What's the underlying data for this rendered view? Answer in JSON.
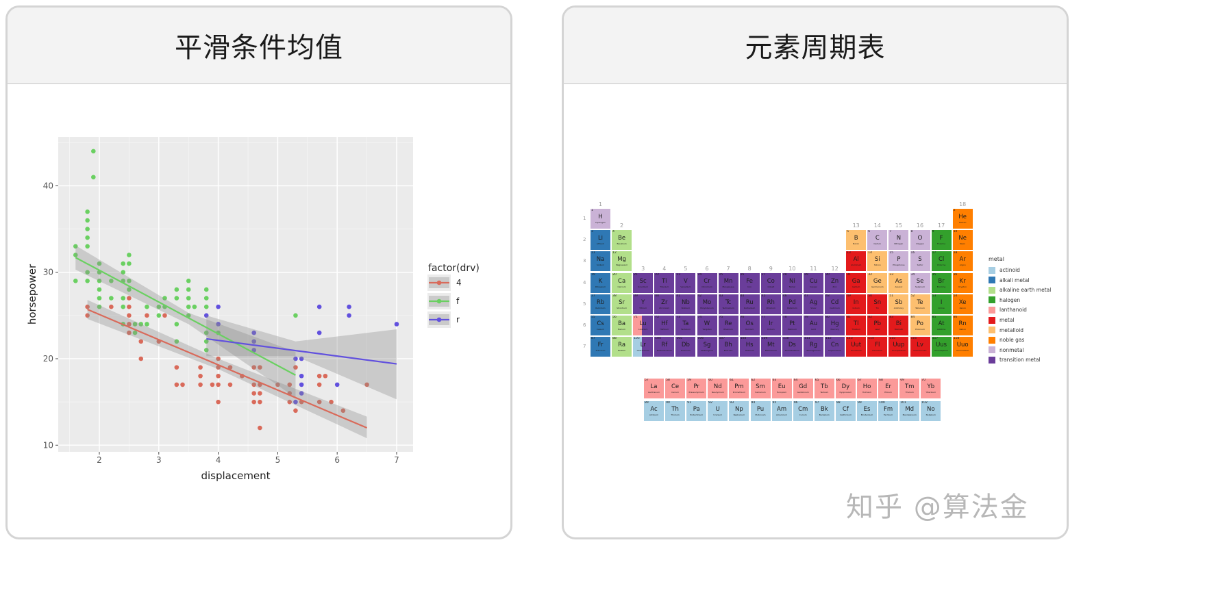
{
  "left_card": {
    "title": "平滑条件均值"
  },
  "right_card": {
    "title": "元素周期表"
  },
  "watermark": "知乎 @算法金",
  "chart_data": {
    "type": "scatter",
    "xlabel": "displacement",
    "ylabel": "horsepower",
    "xlim": [
      1.3,
      7.3
    ],
    "ylim": [
      9.5,
      45.5
    ],
    "xticks": [
      2,
      3,
      4,
      5,
      6,
      7
    ],
    "yticks": [
      10,
      20,
      30,
      40
    ],
    "grid": true,
    "background": "#ebebeb",
    "legend": {
      "title": "factor(drv)",
      "placement": "right"
    },
    "series": [
      {
        "name": "4",
        "color": "#d96a5a",
        "points": [
          [
            1.8,
            26
          ],
          [
            1.8,
            25
          ],
          [
            2.2,
            26
          ],
          [
            2.5,
            27
          ],
          [
            2.5,
            26
          ],
          [
            2.5,
            25
          ],
          [
            2.5,
            24
          ],
          [
            2.5,
            23
          ],
          [
            2.7,
            22
          ],
          [
            2.7,
            20
          ],
          [
            2.8,
            25
          ],
          [
            3.0,
            22
          ],
          [
            3.1,
            25
          ],
          [
            3.3,
            19
          ],
          [
            3.3,
            17
          ],
          [
            3.4,
            17
          ],
          [
            3.7,
            19
          ],
          [
            3.7,
            18
          ],
          [
            3.7,
            17
          ],
          [
            3.9,
            17
          ],
          [
            4.0,
            20
          ],
          [
            4.0,
            19
          ],
          [
            4.0,
            18
          ],
          [
            4.0,
            17
          ],
          [
            4.0,
            15
          ],
          [
            4.2,
            19
          ],
          [
            4.2,
            17
          ],
          [
            4.4,
            18
          ],
          [
            4.6,
            19
          ],
          [
            4.6,
            17
          ],
          [
            4.6,
            16
          ],
          [
            4.6,
            15
          ],
          [
            4.7,
            19
          ],
          [
            4.7,
            17
          ],
          [
            4.7,
            16
          ],
          [
            4.7,
            15
          ],
          [
            4.7,
            12
          ],
          [
            5.0,
            17
          ],
          [
            5.2,
            17
          ],
          [
            5.2,
            16
          ],
          [
            5.2,
            15
          ],
          [
            5.3,
            19
          ],
          [
            5.3,
            14
          ],
          [
            5.4,
            15
          ],
          [
            5.7,
            18
          ],
          [
            5.7,
            17
          ],
          [
            5.7,
            15
          ],
          [
            5.8,
            18
          ],
          [
            5.9,
            15
          ],
          [
            6.1,
            14
          ],
          [
            6.5,
            17
          ]
        ],
        "fit": [
          [
            1.8,
            25.7
          ],
          [
            6.5,
            12.0
          ]
        ],
        "band": [
          [
            1.8,
            24.6,
            26.8
          ],
          [
            4.0,
            18.8,
            20.0
          ],
          [
            6.5,
            10.8,
            13.3
          ]
        ]
      },
      {
        "name": "f",
        "color": "#6ad061",
        "points": [
          [
            1.6,
            33
          ],
          [
            1.6,
            32
          ],
          [
            1.6,
            29
          ],
          [
            1.8,
            37
          ],
          [
            1.8,
            36
          ],
          [
            1.8,
            35
          ],
          [
            1.8,
            34
          ],
          [
            1.8,
            33
          ],
          [
            1.8,
            30
          ],
          [
            1.8,
            29
          ],
          [
            1.9,
            44
          ],
          [
            1.9,
            41
          ],
          [
            2.0,
            31
          ],
          [
            2.0,
            30
          ],
          [
            2.0,
            29
          ],
          [
            2.0,
            28
          ],
          [
            2.0,
            27
          ],
          [
            2.0,
            26
          ],
          [
            2.2,
            29
          ],
          [
            2.2,
            27
          ],
          [
            2.4,
            31
          ],
          [
            2.4,
            30
          ],
          [
            2.4,
            29
          ],
          [
            2.4,
            27
          ],
          [
            2.4,
            26
          ],
          [
            2.4,
            24
          ],
          [
            2.5,
            32
          ],
          [
            2.5,
            31
          ],
          [
            2.5,
            29
          ],
          [
            2.5,
            28
          ],
          [
            2.6,
            24
          ],
          [
            2.6,
            23
          ],
          [
            2.7,
            24
          ],
          [
            2.8,
            26
          ],
          [
            2.8,
            24
          ],
          [
            3.0,
            26
          ],
          [
            3.0,
            25
          ],
          [
            3.1,
            27
          ],
          [
            3.1,
            26
          ],
          [
            3.3,
            28
          ],
          [
            3.3,
            27
          ],
          [
            3.3,
            24
          ],
          [
            3.3,
            22
          ],
          [
            3.5,
            29
          ],
          [
            3.5,
            28
          ],
          [
            3.5,
            27
          ],
          [
            3.5,
            26
          ],
          [
            3.5,
            25
          ],
          [
            3.6,
            26
          ],
          [
            3.8,
            28
          ],
          [
            3.8,
            27
          ],
          [
            3.8,
            26
          ],
          [
            3.8,
            23
          ],
          [
            3.8,
            22
          ],
          [
            3.8,
            21
          ],
          [
            4.0,
            23
          ],
          [
            5.3,
            25
          ]
        ],
        "fit": [
          [
            1.6,
            31.7
          ],
          [
            5.3,
            18.1
          ]
        ],
        "band": [
          [
            1.6,
            30.3,
            33.1
          ],
          [
            3.5,
            24.0,
            25.3
          ],
          [
            5.3,
            15.5,
            20.8
          ]
        ]
      },
      {
        "name": "r",
        "color": "#6150de",
        "points": [
          [
            3.8,
            25
          ],
          [
            4.0,
            26
          ],
          [
            4.0,
            24
          ],
          [
            4.6,
            23
          ],
          [
            4.6,
            22
          ],
          [
            4.6,
            21
          ],
          [
            5.3,
            20
          ],
          [
            5.4,
            20
          ],
          [
            5.4,
            18
          ],
          [
            5.4,
            17
          ],
          [
            5.4,
            16
          ],
          [
            5.3,
            15
          ],
          [
            5.7,
            26
          ],
          [
            5.7,
            23
          ],
          [
            6.0,
            17
          ],
          [
            6.2,
            26
          ],
          [
            6.2,
            25
          ],
          [
            7.0,
            24
          ]
        ],
        "fit": [
          [
            3.8,
            22.3
          ],
          [
            7.0,
            19.4
          ]
        ],
        "band": [
          [
            3.8,
            20.3,
            25.0
          ],
          [
            5.3,
            20.3,
            22.0
          ],
          [
            7.0,
            15.3,
            23.4
          ]
        ]
      }
    ]
  },
  "periodic_table": {
    "group_labels": [
      "1",
      "2",
      "3",
      "4",
      "5",
      "6",
      "7",
      "8",
      "9",
      "10",
      "11",
      "12",
      "13",
      "14",
      "15",
      "16",
      "17",
      "18"
    ],
    "period_labels": [
      "1",
      "2",
      "3",
      "4",
      "5",
      "6",
      "7"
    ],
    "legend_title": "metal",
    "legend": [
      {
        "label": "actinoid",
        "key": "actinoid",
        "color": "#a6cee3"
      },
      {
        "label": "alkali metal",
        "key": "alkali",
        "color": "#2f78b4"
      },
      {
        "label": "alkaline earth metal",
        "key": "alkaline",
        "color": "#b2df8a"
      },
      {
        "label": "halogen",
        "key": "halogen",
        "color": "#33a02c"
      },
      {
        "label": "lanthanoid",
        "key": "lanthanoid",
        "color": "#fb9a99"
      },
      {
        "label": "metal",
        "key": "metal",
        "color": "#e31a1c"
      },
      {
        "label": "metalloid",
        "key": "metalloid",
        "color": "#fdbf6f"
      },
      {
        "label": "noble gas",
        "key": "noble",
        "color": "#ff7f00"
      },
      {
        "label": "nonmetal",
        "key": "nonmetal",
        "color": "#cab2d6"
      },
      {
        "label": "transition metal",
        "key": "transition",
        "color": "#6a3d9a"
      }
    ],
    "categories": {
      "nonmetal": [
        1,
        6,
        7,
        8,
        15,
        16,
        34
      ],
      "noble": [
        2,
        10,
        18,
        36,
        54,
        86,
        118
      ],
      "alkali": [
        3,
        11,
        19,
        37,
        55,
        87
      ],
      "alkaline": [
        4,
        12,
        20,
        38,
        56,
        88
      ],
      "metalloid": [
        5,
        14,
        32,
        33,
        51,
        52,
        84
      ],
      "halogen": [
        9,
        17,
        35,
        53,
        85,
        117
      ],
      "metal": [
        13,
        31,
        49,
        50,
        81,
        82,
        83,
        113,
        114,
        115,
        116
      ],
      "lanthanoid": [
        57,
        58,
        59,
        60,
        61,
        62,
        63,
        64,
        65,
        66,
        67,
        68,
        69,
        70
      ],
      "actinoid": [
        89,
        90,
        91,
        92,
        93,
        94,
        95,
        96,
        97,
        98,
        99,
        100,
        101,
        102
      ]
    },
    "elements": [
      [
        1,
        "H",
        "Hydrogen"
      ],
      [
        2,
        "He",
        "Helium"
      ],
      [
        3,
        "Li",
        "Lithium"
      ],
      [
        4,
        "Be",
        "Beryllium"
      ],
      [
        5,
        "B",
        "Boron"
      ],
      [
        6,
        "C",
        "Carbon"
      ],
      [
        7,
        "N",
        "Nitrogen"
      ],
      [
        8,
        "O",
        "Oxygen"
      ],
      [
        9,
        "F",
        "Fluorine"
      ],
      [
        10,
        "Ne",
        "Neon"
      ],
      [
        11,
        "Na",
        "Sodium"
      ],
      [
        12,
        "Mg",
        "Magnesium"
      ],
      [
        13,
        "Al",
        "Aluminum"
      ],
      [
        14,
        "Si",
        "Silicon"
      ],
      [
        15,
        "P",
        "Phosphorus"
      ],
      [
        16,
        "S",
        "Sulfur"
      ],
      [
        17,
        "Cl",
        "Chlorine"
      ],
      [
        18,
        "Ar",
        "Argon"
      ],
      [
        19,
        "K",
        "Potassium"
      ],
      [
        20,
        "Ca",
        "Calcium"
      ],
      [
        21,
        "Sc",
        "Scandium"
      ],
      [
        22,
        "Ti",
        "Titanium"
      ],
      [
        23,
        "V",
        "Vanadium"
      ],
      [
        24,
        "Cr",
        "Chromium"
      ],
      [
        25,
        "Mn",
        "Manganese"
      ],
      [
        26,
        "Fe",
        "Iron"
      ],
      [
        27,
        "Co",
        "Cobalt"
      ],
      [
        28,
        "Ni",
        "Nickel"
      ],
      [
        29,
        "Cu",
        "Copper"
      ],
      [
        30,
        "Zn",
        "Zinc"
      ],
      [
        31,
        "Ga",
        "Gallium"
      ],
      [
        32,
        "Ge",
        "Germanium"
      ],
      [
        33,
        "As",
        "Arsenic"
      ],
      [
        34,
        "Se",
        "Selenium"
      ],
      [
        35,
        "Br",
        "Bromine"
      ],
      [
        36,
        "Kr",
        "Krypton"
      ],
      [
        37,
        "Rb",
        "Rubidium"
      ],
      [
        38,
        "Sr",
        "Strontium"
      ],
      [
        39,
        "Y",
        "Yttrium"
      ],
      [
        40,
        "Zr",
        "Zirconium"
      ],
      [
        41,
        "Nb",
        "Niobium"
      ],
      [
        42,
        "Mo",
        "Molybdenum"
      ],
      [
        43,
        "Tc",
        "Technetium"
      ],
      [
        44,
        "Ru",
        "Ruthenium"
      ],
      [
        45,
        "Rh",
        "Rhodium"
      ],
      [
        46,
        "Pd",
        "Palladium"
      ],
      [
        47,
        "Ag",
        "Silver"
      ],
      [
        48,
        "Cd",
        "Cadmium"
      ],
      [
        49,
        "In",
        "Indium"
      ],
      [
        50,
        "Sn",
        "Tin"
      ],
      [
        51,
        "Sb",
        "Antimony"
      ],
      [
        52,
        "Te",
        "Tellurium"
      ],
      [
        53,
        "I",
        "Iodine"
      ],
      [
        54,
        "Xe",
        "Xenon"
      ],
      [
        55,
        "Cs",
        "Cesium"
      ],
      [
        56,
        "Ba",
        "Barium"
      ],
      [
        57,
        "La",
        "Lanthanum"
      ],
      [
        58,
        "Ce",
        "Cerium"
      ],
      [
        59,
        "Pr",
        "Praseodymium"
      ],
      [
        60,
        "Nd",
        "Neodymium"
      ],
      [
        61,
        "Pm",
        "Promethium"
      ],
      [
        62,
        "Sm",
        "Samarium"
      ],
      [
        63,
        "Eu",
        "Europium"
      ],
      [
        64,
        "Gd",
        "Gadolinium"
      ],
      [
        65,
        "Tb",
        "Terbium"
      ],
      [
        66,
        "Dy",
        "Dysprosium"
      ],
      [
        67,
        "Ho",
        "Holmium"
      ],
      [
        68,
        "Er",
        "Erbium"
      ],
      [
        69,
        "Tm",
        "Thulium"
      ],
      [
        70,
        "Yb",
        "Ytterbium"
      ],
      [
        71,
        "Lu",
        "Lutetium"
      ],
      [
        72,
        "Hf",
        "Hafnium"
      ],
      [
        73,
        "Ta",
        "Tantalum"
      ],
      [
        74,
        "W",
        "Tungsten"
      ],
      [
        75,
        "Re",
        "Rhenium"
      ],
      [
        76,
        "Os",
        "Osmium"
      ],
      [
        77,
        "Ir",
        "Iridium"
      ],
      [
        78,
        "Pt",
        "Platinum"
      ],
      [
        79,
        "Au",
        "Gold"
      ],
      [
        80,
        "Hg",
        "Mercury"
      ],
      [
        81,
        "Tl",
        "Thallium"
      ],
      [
        82,
        "Pb",
        "Lead"
      ],
      [
        83,
        "Bi",
        "Bismuth"
      ],
      [
        84,
        "Po",
        "Polonium"
      ],
      [
        85,
        "At",
        "Astatine"
      ],
      [
        86,
        "Rn",
        "Radon"
      ],
      [
        87,
        "Fr",
        "Francium"
      ],
      [
        88,
        "Ra",
        "Radium"
      ],
      [
        89,
        "Ac",
        "Actinium"
      ],
      [
        90,
        "Th",
        "Thorium"
      ],
      [
        91,
        "Pa",
        "Protactinium"
      ],
      [
        92,
        "U",
        "Uranium"
      ],
      [
        93,
        "Np",
        "Neptunium"
      ],
      [
        94,
        "Pu",
        "Plutonium"
      ],
      [
        95,
        "Am",
        "Americium"
      ],
      [
        96,
        "Cm",
        "Curium"
      ],
      [
        97,
        "Bk",
        "Berkelium"
      ],
      [
        98,
        "Cf",
        "Californium"
      ],
      [
        99,
        "Es",
        "Einsteinium"
      ],
      [
        100,
        "Fm",
        "Fermium"
      ],
      [
        101,
        "Md",
        "Mendelevium"
      ],
      [
        102,
        "No",
        "Nobelium"
      ],
      [
        103,
        "Lr",
        "Lawrencium"
      ],
      [
        104,
        "Rf",
        "Rutherfordium"
      ],
      [
        105,
        "Db",
        "Dubnium"
      ],
      [
        106,
        "Sg",
        "Seaborgium"
      ],
      [
        107,
        "Bh",
        "Bohrium"
      ],
      [
        108,
        "Hs",
        "Hassium"
      ],
      [
        109,
        "Mt",
        "Meitnerium"
      ],
      [
        110,
        "Ds",
        "Darmstadtium"
      ],
      [
        111,
        "Rg",
        "Roentgenium"
      ],
      [
        112,
        "Cn",
        "Copernicium"
      ],
      [
        113,
        "Uut",
        "Ununtrium"
      ],
      [
        114,
        "Fl",
        "Flerovium"
      ],
      [
        115,
        "Uup",
        "Ununpentium"
      ],
      [
        116,
        "Lv",
        "Livermorium"
      ],
      [
        117,
        "Uus",
        "Ununseptium"
      ],
      [
        118,
        "Uuo",
        "Ununoctium"
      ]
    ]
  }
}
